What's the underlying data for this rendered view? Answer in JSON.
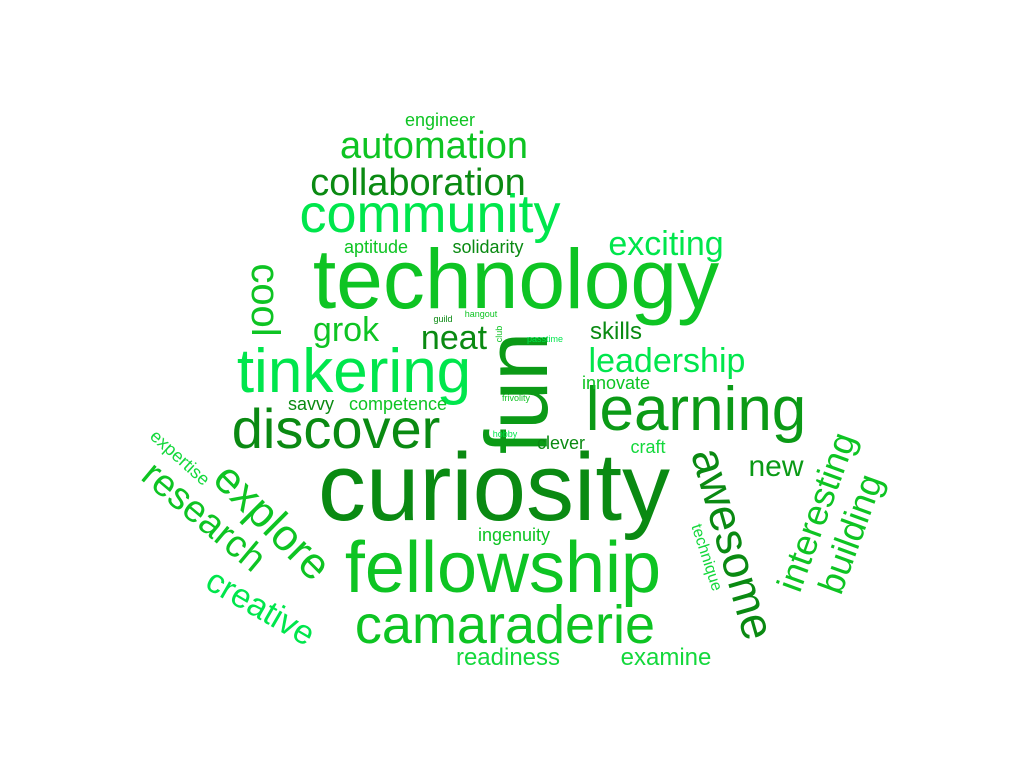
{
  "colors": {
    "bright": "#00e64c",
    "light": "#14d83c",
    "mid": "#0ec423",
    "dark": "#0b9a16",
    "deep": "#0a8a12"
  },
  "words": [
    {
      "text": "curiosity",
      "color": "deep"
    },
    {
      "text": "technology",
      "color": "mid"
    },
    {
      "text": "fun",
      "color": "dark"
    },
    {
      "text": "fellowship",
      "color": "mid"
    },
    {
      "text": "tinkering",
      "color": "bright"
    },
    {
      "text": "learning",
      "color": "dark"
    },
    {
      "text": "discover",
      "color": "deep"
    },
    {
      "text": "community",
      "color": "bright"
    },
    {
      "text": "camaraderie",
      "color": "mid"
    },
    {
      "text": "awesome",
      "color": "deep"
    },
    {
      "text": "explore",
      "color": "mid"
    },
    {
      "text": "automation",
      "color": "mid"
    },
    {
      "text": "collaboration",
      "color": "deep"
    },
    {
      "text": "research",
      "color": "mid"
    },
    {
      "text": "interesting",
      "color": "mid"
    },
    {
      "text": "building",
      "color": "mid"
    },
    {
      "text": "creative",
      "color": "bright"
    },
    {
      "text": "cool",
      "color": "mid"
    },
    {
      "text": "exciting",
      "color": "bright"
    },
    {
      "text": "leadership",
      "color": "bright"
    },
    {
      "text": "grok",
      "color": "mid"
    },
    {
      "text": "neat",
      "color": "deep"
    },
    {
      "text": "new",
      "color": "dark"
    },
    {
      "text": "skills",
      "color": "deep"
    },
    {
      "text": "readiness",
      "color": "light"
    },
    {
      "text": "examine",
      "color": "light"
    },
    {
      "text": "engineer",
      "color": "mid"
    },
    {
      "text": "aptitude",
      "color": "mid"
    },
    {
      "text": "solidarity",
      "color": "deep"
    },
    {
      "text": "innovate",
      "color": "mid"
    },
    {
      "text": "savvy",
      "color": "deep"
    },
    {
      "text": "competence",
      "color": "mid"
    },
    {
      "text": "clever",
      "color": "deep"
    },
    {
      "text": "craft",
      "color": "light"
    },
    {
      "text": "ingenuity",
      "color": "mid"
    },
    {
      "text": "technique",
      "color": "light"
    },
    {
      "text": "expertise",
      "color": "light"
    },
    {
      "text": "guild",
      "color": "deep"
    },
    {
      "text": "hangout",
      "color": "mid"
    },
    {
      "text": "club",
      "color": "mid"
    },
    {
      "text": "passtime",
      "color": "bright"
    },
    {
      "text": "frivolity",
      "color": "mid"
    },
    {
      "text": "hobby",
      "color": "bright"
    }
  ]
}
